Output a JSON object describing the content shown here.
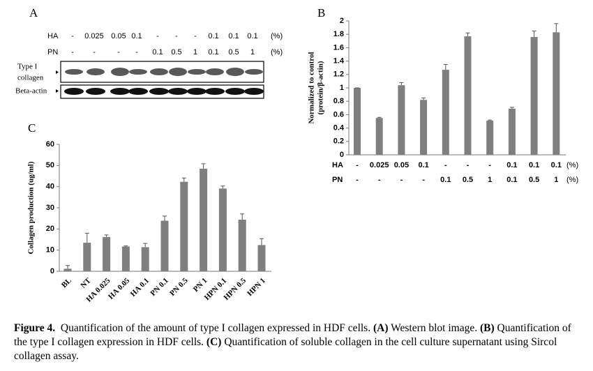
{
  "blot": {
    "panel": "A",
    "rows": [
      {
        "name": "HA",
        "labels": [
          "-",
          "0.025",
          "0.05",
          "0.1",
          "-",
          "-",
          "-",
          "0.1",
          "0.1",
          "0.1"
        ],
        "unit": "(%)"
      },
      {
        "name": "PN",
        "labels": [
          "-",
          "-",
          "-",
          "-",
          "0.1",
          "0.5",
          "1",
          "0.1",
          "0.5",
          "1"
        ],
        "unit": "(%)"
      }
    ],
    "bands": [
      "Type I",
      "collagen",
      "Beta-actin"
    ]
  },
  "chart_data": [
    {
      "type": "bar",
      "panel": "B",
      "y_label": [
        "Normalized to control",
        "(protein/β-actin)"
      ],
      "categories": [
        null,
        null,
        null,
        null,
        null,
        null,
        null,
        null,
        null,
        null
      ],
      "values": [
        1.0,
        0.55,
        1.04,
        0.82,
        1.27,
        1.77,
        0.51,
        0.69,
        1.76,
        1.83
      ],
      "errors": [
        0,
        0.01,
        0.04,
        0.03,
        0.08,
        0.05,
        0.01,
        0.02,
        0.09,
        0.13
      ],
      "color": "#7f7f7f",
      "ylim": [
        0,
        2
      ],
      "yticks": [
        0,
        0.2,
        0.4,
        0.6,
        0.8,
        1,
        1.2,
        1.4,
        1.6,
        1.8,
        2
      ],
      "x_table": [
        {
          "name": "HA",
          "labels": [
            "-",
            "0.025",
            "0.05",
            "0.1",
            "-",
            "-",
            "-",
            "0.1",
            "0.1",
            "0.1"
          ],
          "unit": "(%)"
        },
        {
          "name": "PN",
          "labels": [
            "-",
            "-",
            "-",
            "-",
            "0.1",
            "0.5",
            "1",
            "0.1",
            "0.5",
            "1"
          ],
          "unit": "(%)"
        }
      ]
    },
    {
      "type": "bar",
      "panel": "C",
      "y_label": "Collagen production (ug/ml)",
      "categories": [
        "BL",
        "NT",
        "HA 0.025",
        "HA 0.05",
        "HA 0.1",
        "PN 0.1",
        "PN 0.5",
        "PN 1",
        "HPN 0.1",
        "HPN 0.5",
        "HPN 1"
      ],
      "values": [
        1.2,
        13.5,
        16.2,
        11.7,
        11.4,
        23.9,
        42.3,
        48.5,
        39.1,
        24.4,
        12.4
      ],
      "errors": [
        1.5,
        4.5,
        1.0,
        0.3,
        1.8,
        2.2,
        1.8,
        2.3,
        1.2,
        2.7,
        3.0
      ],
      "color": "#7f7f7f",
      "ylim": [
        0,
        60
      ],
      "yticks": [
        0,
        10,
        20,
        30,
        40,
        50,
        60
      ]
    }
  ],
  "caption": [
    {
      "text": "Figure 4.",
      "bold": true
    },
    {
      "text": "  Quantification of the amount of type I collagen expressed in HDF cells. ",
      "bold": false
    },
    {
      "text": "(A)",
      "bold": true
    },
    {
      "text": " Western blot image. ",
      "bold": false
    },
    {
      "text": "(B)",
      "bold": true
    },
    {
      "text": " Quantification of the type I collagen expression in HDF cells. ",
      "bold": false
    },
    {
      "text": "(C)",
      "bold": true
    },
    {
      "text": " Quantification of soluble collagen in the cell culture supernatant using Sircol collagen assay.",
      "bold": false
    }
  ]
}
